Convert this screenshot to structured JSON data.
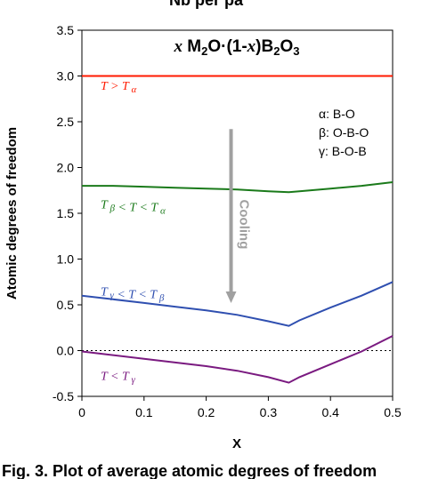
{
  "chart_data": {
    "type": "line",
    "title_parts": [
      "x",
      " M",
      "2",
      "O·(1-",
      "x",
      ")B",
      "2",
      "O",
      "3"
    ],
    "top_caption": "Nb per pa",
    "caption": "Fig. 3. Plot of average atomic degrees of freedom",
    "xlabel": "X",
    "ylabel": "Atomic degrees of freedom",
    "xlim": [
      0,
      0.5
    ],
    "ylim": [
      -0.5,
      3.5
    ],
    "xticks": [
      "0",
      "0.1",
      "0.2",
      "0.3",
      "0.4",
      "0.5"
    ],
    "xtick_values": [
      0,
      0.1,
      0.2,
      0.3,
      0.4,
      0.5
    ],
    "yticks": [
      "-0.5",
      "0.0",
      "0.5",
      "1.0",
      "1.5",
      "2.0",
      "2.5",
      "3.0",
      "3.5"
    ],
    "ytick_values": [
      -0.5,
      0.0,
      0.5,
      1.0,
      1.5,
      2.0,
      2.5,
      3.0,
      3.5
    ],
    "legend_lines": [
      "α: B-O",
      "β: O-B-O",
      "γ: B-O-B"
    ],
    "arrow_label": "Cooling",
    "arrow": {
      "x": 0.24,
      "y_start": 2.42,
      "y_end": 0.52,
      "color": "#a0a0a0"
    },
    "reference_line": {
      "y": 0.0,
      "style": "dotted"
    },
    "series": [
      {
        "label_parts": [
          [
            "T",
            "i"
          ],
          [
            " > ",
            ""
          ],
          [
            "T",
            "i"
          ],
          [
            " α",
            "sub"
          ]
        ],
        "color": "#ff1a00",
        "label_x": 0.03,
        "label_y": 2.9,
        "x": [
          0,
          0.1,
          0.2,
          0.3,
          0.333,
          0.4,
          0.5
        ],
        "y": [
          3.0,
          3.0,
          3.0,
          3.0,
          3.0,
          3.0,
          3.0
        ]
      },
      {
        "label_parts": [
          [
            "T",
            "i"
          ],
          [
            " β",
            "sub"
          ],
          [
            " < ",
            ""
          ],
          [
            "T",
            "i"
          ],
          [
            " < ",
            ""
          ],
          [
            "T",
            "i"
          ],
          [
            " α",
            "sub"
          ]
        ],
        "color": "#1a7a1a",
        "label_x": 0.03,
        "label_y": 1.6,
        "x": [
          0,
          0.05,
          0.1,
          0.15,
          0.2,
          0.25,
          0.3,
          0.333,
          0.35,
          0.4,
          0.45,
          0.5
        ],
        "y": [
          1.8,
          1.8,
          1.79,
          1.78,
          1.77,
          1.76,
          1.74,
          1.73,
          1.74,
          1.77,
          1.8,
          1.84
        ]
      },
      {
        "label_parts": [
          [
            "T",
            "i"
          ],
          [
            " γ",
            "sub"
          ],
          [
            " < ",
            ""
          ],
          [
            "T",
            "i"
          ],
          [
            " < ",
            ""
          ],
          [
            "T",
            "i"
          ],
          [
            " β",
            "sub"
          ]
        ],
        "color": "#2f4fb0",
        "label_x": 0.03,
        "label_y": 0.65,
        "x": [
          0,
          0.05,
          0.1,
          0.15,
          0.2,
          0.25,
          0.3,
          0.333,
          0.35,
          0.4,
          0.45,
          0.5
        ],
        "y": [
          0.6,
          0.56,
          0.52,
          0.48,
          0.44,
          0.39,
          0.32,
          0.27,
          0.33,
          0.47,
          0.6,
          0.75
        ]
      },
      {
        "label_parts": [
          [
            "T",
            "i"
          ],
          [
            " < ",
            ""
          ],
          [
            "T",
            "i"
          ],
          [
            " γ",
            "sub"
          ]
        ],
        "color": "#7a1a80",
        "label_x": 0.03,
        "label_y": -0.27,
        "x": [
          0,
          0.05,
          0.1,
          0.15,
          0.2,
          0.25,
          0.3,
          0.333,
          0.35,
          0.4,
          0.45,
          0.5
        ],
        "y": [
          -0.01,
          -0.05,
          -0.09,
          -0.13,
          -0.17,
          -0.22,
          -0.29,
          -0.35,
          -0.29,
          -0.15,
          -0.01,
          0.16
        ]
      }
    ],
    "grid": false
  }
}
